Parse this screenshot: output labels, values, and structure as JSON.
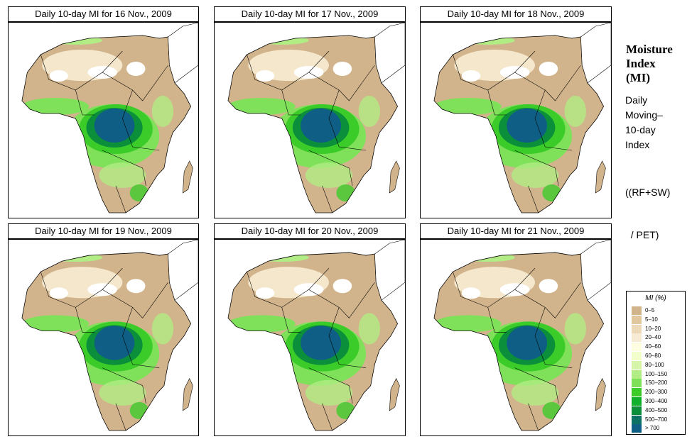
{
  "panels": [
    {
      "title": "Daily 10-day MI for 16 Nov., 2009"
    },
    {
      "title": "Daily 10-day MI for 17 Nov., 2009"
    },
    {
      "title": "Daily 10-day MI for 18 Nov., 2009"
    },
    {
      "title": "Daily 10-day MI for 19 Nov., 2009"
    },
    {
      "title": "Daily 10-day MI for 20 Nov., 2009"
    },
    {
      "title": "Daily 10-day MI for 21 Nov., 2009"
    }
  ],
  "sidebar": {
    "title_line1": "Moisture",
    "title_line2": "Index",
    "title_line3": "(MI)",
    "desc_line1": "Daily",
    "desc_line2": "Moving–",
    "desc_line3": "10-day",
    "desc_line4": "Index",
    "formula_line1": "((RF+SW)",
    "formula_line2": "  / PET)"
  },
  "legend": {
    "title": "MI (%)",
    "items": [
      {
        "label": "0–5",
        "color": "#d2b48c"
      },
      {
        "label": "5–10",
        "color": "#e0c79d"
      },
      {
        "label": "10–20",
        "color": "#ecd9b7"
      },
      {
        "label": "20–40",
        "color": "#f7ecd3"
      },
      {
        "label": "40–60",
        "color": "#fffde0"
      },
      {
        "label": "60–80",
        "color": "#f2ffcc"
      },
      {
        "label": "80–100",
        "color": "#d6f5a8"
      },
      {
        "label": "100–150",
        "color": "#b2ec85"
      },
      {
        "label": "150–200",
        "color": "#7fe15a"
      },
      {
        "label": "200–300",
        "color": "#3ccc2a"
      },
      {
        "label": "300–400",
        "color": "#10b02c"
      },
      {
        "label": "400–500",
        "color": "#0b8f3a"
      },
      {
        "label": "500–700",
        "color": "#0b7263"
      },
      {
        "label": "> 700",
        "color": "#0f5e85"
      }
    ]
  }
}
